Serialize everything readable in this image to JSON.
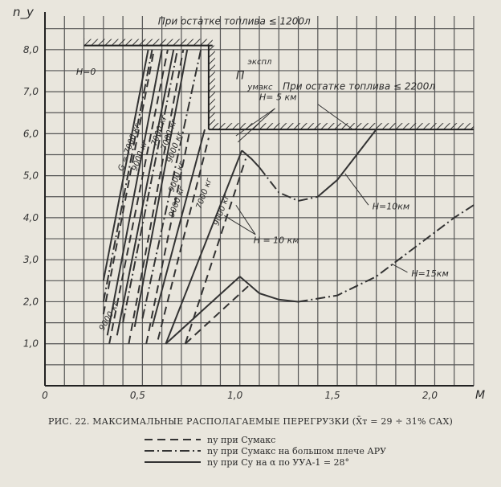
{
  "chart_data": {
    "type": "line",
    "ylabel": "n_y",
    "xlabel": "M",
    "xlim": [
      0,
      2.2
    ],
    "ylim": [
      0,
      8.8
    ],
    "x_ticks": [
      {
        "v": 0,
        "label": "0"
      },
      {
        "v": 0.5,
        "label": "0,5"
      },
      {
        "v": 1.0,
        "label": "1,0"
      },
      {
        "v": 1.5,
        "label": "1,5"
      },
      {
        "v": 2.0,
        "label": "2,0"
      }
    ],
    "y_ticks": [
      {
        "v": 1,
        "label": "1,0"
      },
      {
        "v": 2,
        "label": "2,0"
      },
      {
        "v": 3,
        "label": "3,0"
      },
      {
        "v": 4,
        "label": "4,0"
      },
      {
        "v": 5,
        "label": "5,0"
      },
      {
        "v": 6,
        "label": "6,0"
      },
      {
        "v": 7,
        "label": "7,0"
      },
      {
        "v": 8,
        "label": "8,0"
      }
    ],
    "limits": [
      {
        "name": "При остатке топлива ≤ 1200л",
        "y": 8.1,
        "x_range": [
          0.2,
          0.86
        ]
      },
      {
        "name": "При остатке топлива ≤ 2200л",
        "y": 6.1,
        "x_range": [
          0.84,
          2.2
        ]
      }
    ],
    "series": [
      {
        "style": "solid",
        "points": [
          [
            0.3,
            2.5
          ],
          [
            0.53,
            8.0
          ]
        ]
      },
      {
        "style": "dashdot",
        "points": [
          [
            0.3,
            2.0
          ],
          [
            0.55,
            8.0
          ]
        ]
      },
      {
        "style": "dashed",
        "points": [
          [
            0.3,
            1.7
          ],
          [
            0.56,
            8.0
          ]
        ]
      },
      {
        "style": "solid",
        "points": [
          [
            0.32,
            1.2
          ],
          [
            0.6,
            8.0
          ]
        ]
      },
      {
        "style": "dashed",
        "points": [
          [
            0.33,
            1.0
          ],
          [
            0.63,
            8.0
          ]
        ]
      },
      {
        "style": "solid",
        "points": [
          [
            0.37,
            1.2
          ],
          [
            0.66,
            8.0
          ]
        ]
      },
      {
        "style": "dashdot",
        "points": [
          [
            0.4,
            1.5
          ],
          [
            0.68,
            8.0
          ]
        ]
      },
      {
        "style": "dashed",
        "points": [
          [
            0.43,
            1.0
          ],
          [
            0.71,
            8.0
          ]
        ]
      },
      {
        "style": "solid",
        "points": [
          [
            0.46,
            1.4
          ],
          [
            0.73,
            8.0
          ]
        ]
      },
      {
        "style": "dashdot",
        "points": [
          [
            0.5,
            1.6
          ],
          [
            0.8,
            8.0
          ]
        ]
      },
      {
        "style": "dashed",
        "points": [
          [
            0.52,
            1.0
          ],
          [
            0.74,
            6.0
          ]
        ]
      },
      {
        "style": "solid",
        "points": [
          [
            0.55,
            1.4
          ],
          [
            0.82,
            6.1
          ]
        ]
      },
      {
        "style": "dashed",
        "points": [
          [
            0.58,
            1.1
          ],
          [
            0.84,
            5.9
          ]
        ]
      },
      {
        "style": "solid",
        "points": [
          [
            0.62,
            1.0
          ],
          [
            1.01,
            5.6
          ]
        ]
      },
      {
        "style": "dashed",
        "points": [
          [
            0.72,
            1.0
          ],
          [
            1.03,
            5.4
          ]
        ]
      },
      {
        "style": "solid",
        "points": [
          [
            1.01,
            5.6
          ],
          [
            1.06,
            5.4
          ],
          [
            1.1,
            5.2
          ]
        ]
      },
      {
        "style": "dashdot",
        "points": [
          [
            1.1,
            5.2
          ],
          [
            1.2,
            4.6
          ],
          [
            1.3,
            4.4
          ],
          [
            1.4,
            4.5
          ]
        ]
      },
      {
        "style": "solid",
        "points": [
          [
            1.4,
            4.5
          ],
          [
            1.5,
            4.9
          ],
          [
            1.6,
            5.5
          ],
          [
            1.7,
            6.1
          ]
        ]
      },
      {
        "style": "solid",
        "points": [
          [
            0.62,
            1.0
          ],
          [
            1.0,
            2.6
          ]
        ]
      },
      {
        "style": "dashed",
        "points": [
          [
            0.72,
            1.0
          ],
          [
            1.05,
            2.4
          ]
        ]
      },
      {
        "style": "solid",
        "points": [
          [
            1.0,
            2.6
          ],
          [
            1.05,
            2.4
          ],
          [
            1.1,
            2.2
          ]
        ]
      },
      {
        "style": "solid",
        "points": [
          [
            1.1,
            2.2
          ],
          [
            1.2,
            2.05
          ],
          [
            1.3,
            2.0
          ]
        ]
      },
      {
        "style": "dashdot",
        "points": [
          [
            1.3,
            2.0
          ],
          [
            1.5,
            2.15
          ],
          [
            1.7,
            2.6
          ],
          [
            1.9,
            3.3
          ],
          [
            2.1,
            4.0
          ],
          [
            2.2,
            4.3
          ]
        ]
      }
    ],
    "annotations": [
      {
        "text": "H=0",
        "x": 0.16,
        "y": 7.4,
        "rot": 0,
        "size": 11
      },
      {
        "text": "П",
        "x": 0.98,
        "y": 7.3,
        "rot": 0,
        "size": 14
      },
      {
        "text": "экспл",
        "x": 1.04,
        "y": 7.65,
        "rot": 0,
        "size": 10
      },
      {
        "text": "умакс",
        "x": 1.04,
        "y": 7.05,
        "rot": 0,
        "size": 10
      },
      {
        "text": "H= 5 км",
        "x": 1.1,
        "y": 6.8,
        "rot": 0,
        "size": 11
      },
      {
        "text": "H=10км",
        "x": 1.68,
        "y": 4.2,
        "rot": 0,
        "size": 11
      },
      {
        "text": "H = 10 км",
        "x": 1.07,
        "y": 3.4,
        "rot": 0,
        "size": 11
      },
      {
        "text": "H=15км",
        "x": 1.88,
        "y": 2.6,
        "rot": 0,
        "size": 11
      },
      {
        "text": "G = 7000 кг",
        "x": 0.4,
        "y": 5.1,
        "rot": -70,
        "size": 10
      },
      {
        "text": "9000 кг",
        "x": 0.47,
        "y": 5.1,
        "rot": -70,
        "size": 10
      },
      {
        "text": "7000 кг",
        "x": 0.57,
        "y": 5.7,
        "rot": -70,
        "size": 10
      },
      {
        "text": "7000 кг",
        "x": 0.62,
        "y": 5.6,
        "rot": -70,
        "size": 10
      },
      {
        "text": "9000 кг",
        "x": 0.66,
        "y": 4.6,
        "rot": -70,
        "size": 10
      },
      {
        "text": "9000 кг",
        "x": 0.66,
        "y": 4.0,
        "rot": -70,
        "size": 10
      },
      {
        "text": "7000 кг",
        "x": 0.8,
        "y": 4.2,
        "rot": -70,
        "size": 10
      },
      {
        "text": "9000 кг",
        "x": 0.89,
        "y": 3.8,
        "rot": -70,
        "size": 10
      },
      {
        "text": "9000 кг",
        "x": 0.3,
        "y": 1.3,
        "rot": -60,
        "size": 10
      },
      {
        "text": "9000 кг",
        "x": 0.65,
        "y": 5.3,
        "rot": -70,
        "size": 10
      }
    ],
    "leaders": [
      {
        "from": [
          1.18,
          6.6
        ],
        "to": [
          0.98,
          5.95
        ]
      },
      {
        "from": [
          1.18,
          6.6
        ],
        "to": [
          0.99,
          5.8
        ]
      },
      {
        "from": [
          1.08,
          3.6
        ],
        "to": [
          0.92,
          4.05
        ]
      },
      {
        "from": [
          1.08,
          3.6
        ],
        "to": [
          0.98,
          4.3
        ]
      },
      {
        "from": [
          1.66,
          4.3
        ],
        "to": [
          1.54,
          5.05
        ]
      },
      {
        "from": [
          1.86,
          2.7
        ],
        "to": [
          1.78,
          2.9
        ]
      },
      {
        "from": [
          1.4,
          6.7
        ],
        "to": [
          1.58,
          6.1
        ]
      }
    ]
  },
  "caption": "РИС. 22. МАКСИМАЛЬНЫЕ РАСПОЛАГАЕМЫЕ ПЕРЕГРУЗКИ (X̄т = 29 ÷ 31% САХ)",
  "legend": [
    {
      "style": "dashed",
      "text": "nу при Cумакс"
    },
    {
      "style": "dashdot",
      "text": "nу при Cумакс на большом плече АРУ"
    },
    {
      "style": "solid",
      "text": "nу при Cу на α по УУА-1 = 28°"
    }
  ]
}
